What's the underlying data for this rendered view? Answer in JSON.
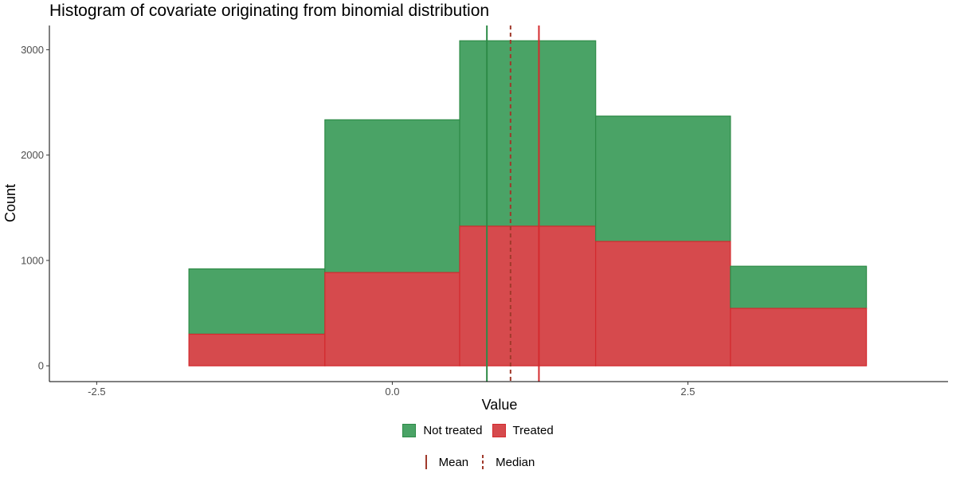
{
  "colors": {
    "not_treated_fill": "#4AA366",
    "not_treated_stroke": "#2E8B47",
    "treated_fill": "#D64A4D",
    "treated_stroke": "#D42A2E",
    "mean_line": "#A0392B",
    "axis": "#000000"
  },
  "chart_data": {
    "type": "bar",
    "subtype": "stacked-histogram",
    "title": "Histogram of covariate originating from binomial distribution",
    "xlabel": "Value",
    "ylabel": "Count",
    "xlim": [
      -2.9,
      4.7
    ],
    "ylim": [
      -150,
      3230
    ],
    "x_ticks": [
      -2.5,
      0.0,
      2.5
    ],
    "x_tick_labels": [
      "-2.5",
      "0.0",
      "2.5"
    ],
    "y_ticks": [
      0,
      1000,
      2000,
      3000
    ],
    "y_tick_labels": [
      "0",
      "1000",
      "2000",
      "3000"
    ],
    "grid": false,
    "legend_placement": "bottom",
    "bins": [
      {
        "x0": -1.72,
        "x1": -0.57
      },
      {
        "x0": -0.57,
        "x1": 0.57
      },
      {
        "x0": 0.57,
        "x1": 1.72
      },
      {
        "x0": 1.72,
        "x1": 2.86
      },
      {
        "x0": 2.86,
        "x1": 4.01
      }
    ],
    "series": [
      {
        "name": "Not treated",
        "values": [
          620,
          1450,
          1760,
          1190,
          400
        ]
      },
      {
        "name": "Treated",
        "values": [
          300,
          885,
          1325,
          1180,
          545
        ]
      }
    ],
    "vlines": [
      {
        "group": "Not treated",
        "stat": "Mean",
        "x": 0.8,
        "style": "solid"
      },
      {
        "group": "Treated",
        "stat": "Mean",
        "x": 1.24,
        "style": "solid"
      },
      {
        "group": "all",
        "stat": "Median",
        "x": 1.0,
        "style": "dashed"
      }
    ]
  },
  "legend": {
    "groups": [
      {
        "label": "Not treated"
      },
      {
        "label": "Treated"
      }
    ],
    "lines": [
      {
        "label": "Mean"
      },
      {
        "label": "Median"
      }
    ]
  }
}
